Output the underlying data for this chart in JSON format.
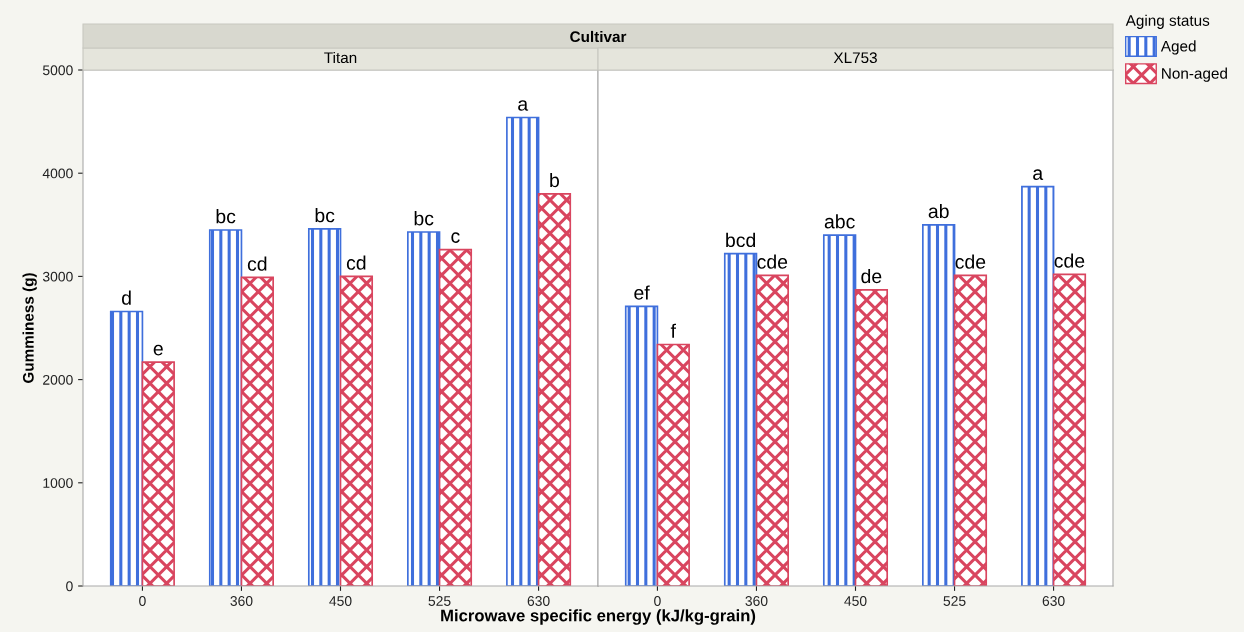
{
  "chart_data": [
    {
      "type": "bar",
      "title": "Titan",
      "annotations": [
        "Cultivar"
      ],
      "xlabel": "Microwave specific energy (kJ/kg-grain)",
      "ylabel": "Gumminess (g)",
      "categories": [
        "0",
        "360",
        "450",
        "525",
        "630"
      ],
      "ylim": [
        0,
        5000
      ],
      "yticks": [
        0,
        1000,
        2000,
        3000,
        4000,
        5000
      ],
      "legend": "right",
      "legend_title": "Aging status",
      "series": [
        {
          "name": "Aged",
          "color": "#3f6fdc",
          "values": [
            2660,
            3450,
            3460,
            3430,
            4540
          ],
          "value_labels": [
            "d",
            "bc",
            "bc",
            "bc",
            "a"
          ]
        },
        {
          "name": "Non-aged",
          "color": "#d9455f",
          "values": [
            2170,
            2990,
            3000,
            3260,
            3800
          ],
          "value_labels": [
            "e",
            "cd",
            "cd",
            "c",
            "b"
          ]
        }
      ]
    },
    {
      "type": "bar",
      "title": "XL753",
      "categories": [
        "0",
        "360",
        "450",
        "525",
        "630"
      ],
      "ylim": [
        0,
        5000
      ],
      "yticks": [
        0,
        1000,
        2000,
        3000,
        4000,
        5000
      ],
      "tick_labels": "x",
      "series": [
        {
          "color": "#3f6fdc",
          "values": [
            2710,
            3220,
            3400,
            3500,
            3870
          ],
          "value_labels": [
            "ef",
            "bcd",
            "abc",
            "ab",
            "a"
          ]
        },
        {
          "color": "#d9455f",
          "values": [
            2340,
            3010,
            2870,
            3010,
            3020
          ],
          "value_labels": [
            "f",
            "cde",
            "de",
            "cde",
            "cde"
          ]
        }
      ]
    }
  ]
}
